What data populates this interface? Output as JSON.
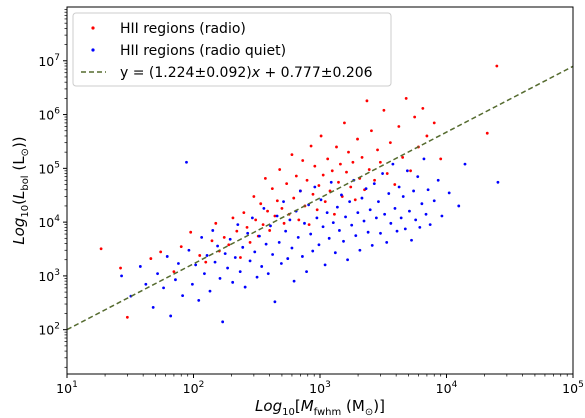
{
  "chart_data": {
    "type": "scatter",
    "xlabel_parts": {
      "prefix": "Log",
      "sub": "10",
      "open": "[",
      "var": "M",
      "varsub": "fwhm",
      "unit": " (M",
      "unitsub": "⊙",
      "close": ")]"
    },
    "ylabel_parts": {
      "prefix": "Log",
      "sub": "10",
      "open": "(",
      "var": "L",
      "varsub": "bol",
      "unit": " (L",
      "unitsub": "⊙",
      "close": "))"
    },
    "x_scale": "log",
    "y_scale": "log",
    "xlim": [
      10,
      100000
    ],
    "ylim": [
      15,
      100000000
    ],
    "x_ticks": [
      {
        "value": 10,
        "base": "10",
        "exp": "1"
      },
      {
        "value": 100,
        "base": "10",
        "exp": "2"
      },
      {
        "value": 1000,
        "base": "10",
        "exp": "3"
      },
      {
        "value": 10000,
        "base": "10",
        "exp": "4"
      },
      {
        "value": 100000,
        "base": "10",
        "exp": "5"
      }
    ],
    "y_ticks": [
      {
        "value": 100,
        "base": "10",
        "exp": "2"
      },
      {
        "value": 1000,
        "base": "10",
        "exp": "3"
      },
      {
        "value": 10000,
        "base": "10",
        "exp": "4"
      },
      {
        "value": 100000,
        "base": "10",
        "exp": "5"
      },
      {
        "value": 1000000,
        "base": "10",
        "exp": "6"
      },
      {
        "value": 10000000,
        "base": "10",
        "exp": "7"
      }
    ],
    "legend_position": "top-left",
    "series": [
      {
        "name": "HII regions (radio)",
        "legend_text": "HII regions (radio)",
        "color": "#ff0000",
        "kind": "points",
        "points": [
          [
            18.6,
            3200
          ],
          [
            26.5,
            1400
          ],
          [
            30,
            170
          ],
          [
            46,
            2100
          ],
          [
            55,
            2800
          ],
          [
            70,
            1200
          ],
          [
            80,
            3500
          ],
          [
            95,
            6500
          ],
          [
            112,
            2400
          ],
          [
            125,
            1800
          ],
          [
            140,
            4500
          ],
          [
            150,
            9500
          ],
          [
            160,
            2900
          ],
          [
            175,
            5200
          ],
          [
            190,
            3800
          ],
          [
            205,
            12000
          ],
          [
            220,
            6800
          ],
          [
            235,
            2200
          ],
          [
            250,
            15000
          ],
          [
            265,
            8000
          ],
          [
            280,
            4200
          ],
          [
            300,
            30000
          ],
          [
            310,
            11000
          ],
          [
            325,
            5500
          ],
          [
            340,
            22000
          ],
          [
            355,
            9000
          ],
          [
            370,
            65000
          ],
          [
            385,
            16000
          ],
          [
            400,
            7000
          ],
          [
            420,
            42000
          ],
          [
            440,
            13000
          ],
          [
            460,
            25000
          ],
          [
            480,
            95000
          ],
          [
            500,
            18000
          ],
          [
            520,
            9500
          ],
          [
            545,
            52000
          ],
          [
            570,
            14000
          ],
          [
            600,
            180000
          ],
          [
            620,
            28000
          ],
          [
            650,
            72000
          ],
          [
            680,
            11000
          ],
          [
            700,
            38000
          ],
          [
            730,
            140000
          ],
          [
            760,
            20000
          ],
          [
            790,
            60000
          ],
          [
            820,
            9000
          ],
          [
            850,
            260000
          ],
          [
            880,
            33000
          ],
          [
            910,
            110000
          ],
          [
            950,
            17000
          ],
          [
            980,
            48000
          ],
          [
            1020,
            400000
          ],
          [
            1060,
            75000
          ],
          [
            1100,
            24000
          ],
          [
            1150,
            150000
          ],
          [
            1200,
            38000
          ],
          [
            1250,
            90000
          ],
          [
            1300,
            14000
          ],
          [
            1350,
            250000
          ],
          [
            1400,
            55000
          ],
          [
            1450,
            120000
          ],
          [
            1500,
            30000
          ],
          [
            1560,
            700000
          ],
          [
            1620,
            85000
          ],
          [
            1680,
            200000
          ],
          [
            1750,
            45000
          ],
          [
            1820,
            130000
          ],
          [
            1900,
            26000
          ],
          [
            1980,
            350000
          ],
          [
            2060,
            65000
          ],
          [
            2150,
            160000
          ],
          [
            2250,
            40000
          ],
          [
            2350,
            1800000
          ],
          [
            2450,
            95000
          ],
          [
            2550,
            500000
          ],
          [
            2700,
            60000
          ],
          [
            2850,
            220000
          ],
          [
            3000,
            130000
          ],
          [
            3200,
            1200000
          ],
          [
            3400,
            80000
          ],
          [
            3600,
            300000
          ],
          [
            3900,
            50000
          ],
          [
            4200,
            600000
          ],
          [
            4500,
            160000
          ],
          [
            4800,
            2000000
          ],
          [
            5200,
            90000
          ],
          [
            5600,
            900000
          ],
          [
            6000,
            250000
          ],
          [
            6500,
            1300000
          ],
          [
            7000,
            400000
          ],
          [
            8000,
            700000
          ],
          [
            9000,
            150000
          ],
          [
            21000,
            450000
          ],
          [
            25000,
            8000000
          ]
        ]
      },
      {
        "name": "HII regions (radio quiet)",
        "legend_text": "HII regions (radio quiet)",
        "color": "#0000ff",
        "kind": "points",
        "points": [
          [
            27,
            1000
          ],
          [
            32,
            420
          ],
          [
            38,
            1500
          ],
          [
            42,
            700
          ],
          [
            48,
            260
          ],
          [
            52,
            1100
          ],
          [
            58,
            600
          ],
          [
            62,
            2300
          ],
          [
            66,
            180
          ],
          [
            72,
            850
          ],
          [
            76,
            1700
          ],
          [
            82,
            430
          ],
          [
            88,
            130000
          ],
          [
            92,
            3000
          ],
          [
            98,
            700
          ],
          [
            104,
            1600
          ],
          [
            110,
            350
          ],
          [
            116,
            5200
          ],
          [
            122,
            1100
          ],
          [
            128,
            2400
          ],
          [
            135,
            520
          ],
          [
            142,
            7000
          ],
          [
            148,
            1800
          ],
          [
            155,
            3600
          ],
          [
            162,
            900
          ],
          [
            170,
            140
          ],
          [
            178,
            2600
          ],
          [
            186,
            1400
          ],
          [
            195,
            4800
          ],
          [
            204,
            760
          ],
          [
            214,
            2200
          ],
          [
            224,
            9000
          ],
          [
            234,
            1200
          ],
          [
            245,
            3400
          ],
          [
            256,
            620
          ],
          [
            268,
            6200
          ],
          [
            280,
            1900
          ],
          [
            292,
            12000
          ],
          [
            305,
            2800
          ],
          [
            318,
            950
          ],
          [
            332,
            5500
          ],
          [
            346,
            1500
          ],
          [
            360,
            18000
          ],
          [
            375,
            3900
          ],
          [
            390,
            1100
          ],
          [
            406,
            8500
          ],
          [
            422,
            2500
          ],
          [
            440,
            330
          ],
          [
            458,
            13000
          ],
          [
            476,
            4200
          ],
          [
            495,
            1700
          ],
          [
            515,
            24000
          ],
          [
            535,
            6800
          ],
          [
            556,
            2100
          ],
          [
            578,
            11000
          ],
          [
            600,
            3300
          ],
          [
            624,
            800
          ],
          [
            648,
            16000
          ],
          [
            673,
            5200
          ],
          [
            699,
            38000
          ],
          [
            726,
            2300
          ],
          [
            754,
            9500
          ],
          [
            783,
            1200
          ],
          [
            813,
            21000
          ],
          [
            844,
            6000
          ],
          [
            876,
            2900
          ],
          [
            910,
            45000
          ],
          [
            945,
            12000
          ],
          [
            981,
            3800
          ],
          [
            1018,
            26000
          ],
          [
            1057,
            8200
          ],
          [
            1097,
            1600
          ],
          [
            1139,
            15000
          ],
          [
            1182,
            5000
          ],
          [
            1227,
            55000
          ],
          [
            1274,
            9800
          ],
          [
            1322,
            2700
          ],
          [
            1372,
            19000
          ],
          [
            1424,
            7000
          ],
          [
            1478,
            32000
          ],
          [
            1534,
            4400
          ],
          [
            1592,
            12500
          ],
          [
            1652,
            2000
          ],
          [
            1715,
            24000
          ],
          [
            1780,
            8800
          ],
          [
            1848,
            60000
          ],
          [
            1918,
            5600
          ],
          [
            1991,
            15000
          ],
          [
            2067,
            3000
          ],
          [
            2146,
            28000
          ],
          [
            2228,
            10500
          ],
          [
            2313,
            42000
          ],
          [
            2401,
            6500
          ],
          [
            2493,
            17000
          ],
          [
            2588,
            3700
          ],
          [
            2687,
            52000
          ],
          [
            2790,
            12000
          ],
          [
            2897,
            24000
          ],
          [
            3008,
            6200
          ],
          [
            3123,
            80000
          ],
          [
            3243,
            14000
          ],
          [
            3367,
            4200
          ],
          [
            3496,
            34000
          ],
          [
            3630,
            9500
          ],
          [
            3769,
            120000
          ],
          [
            3914,
            18000
          ],
          [
            4064,
            6800
          ],
          [
            4220,
            45000
          ],
          [
            4382,
            12000
          ],
          [
            4550,
            30000
          ],
          [
            4725,
            7500
          ],
          [
            4906,
            90000
          ],
          [
            5094,
            16000
          ],
          [
            5290,
            4600
          ],
          [
            5493,
            38000
          ],
          [
            5704,
            11000
          ],
          [
            5923,
            70000
          ],
          [
            6151,
            8000
          ],
          [
            6387,
            22000
          ],
          [
            6633,
            150000
          ],
          [
            6888,
            14000
          ],
          [
            7153,
            40000
          ],
          [
            7428,
            9000
          ],
          [
            8000,
            25000
          ],
          [
            8600,
            60000
          ],
          [
            9200,
            13000
          ],
          [
            10500,
            35000
          ],
          [
            12500,
            20000
          ],
          [
            14000,
            120000
          ],
          [
            25500,
            55000
          ]
        ]
      },
      {
        "name": "y = (1.224±0.092)x + 0.777±0.206",
        "legend_text": "y = (1.224±0.092)",
        "legend_var": "x",
        "legend_tail": " + 0.777±0.206",
        "color": "#556b2f",
        "kind": "fit",
        "slope": 1.224,
        "intercept": 0.777
      }
    ]
  }
}
